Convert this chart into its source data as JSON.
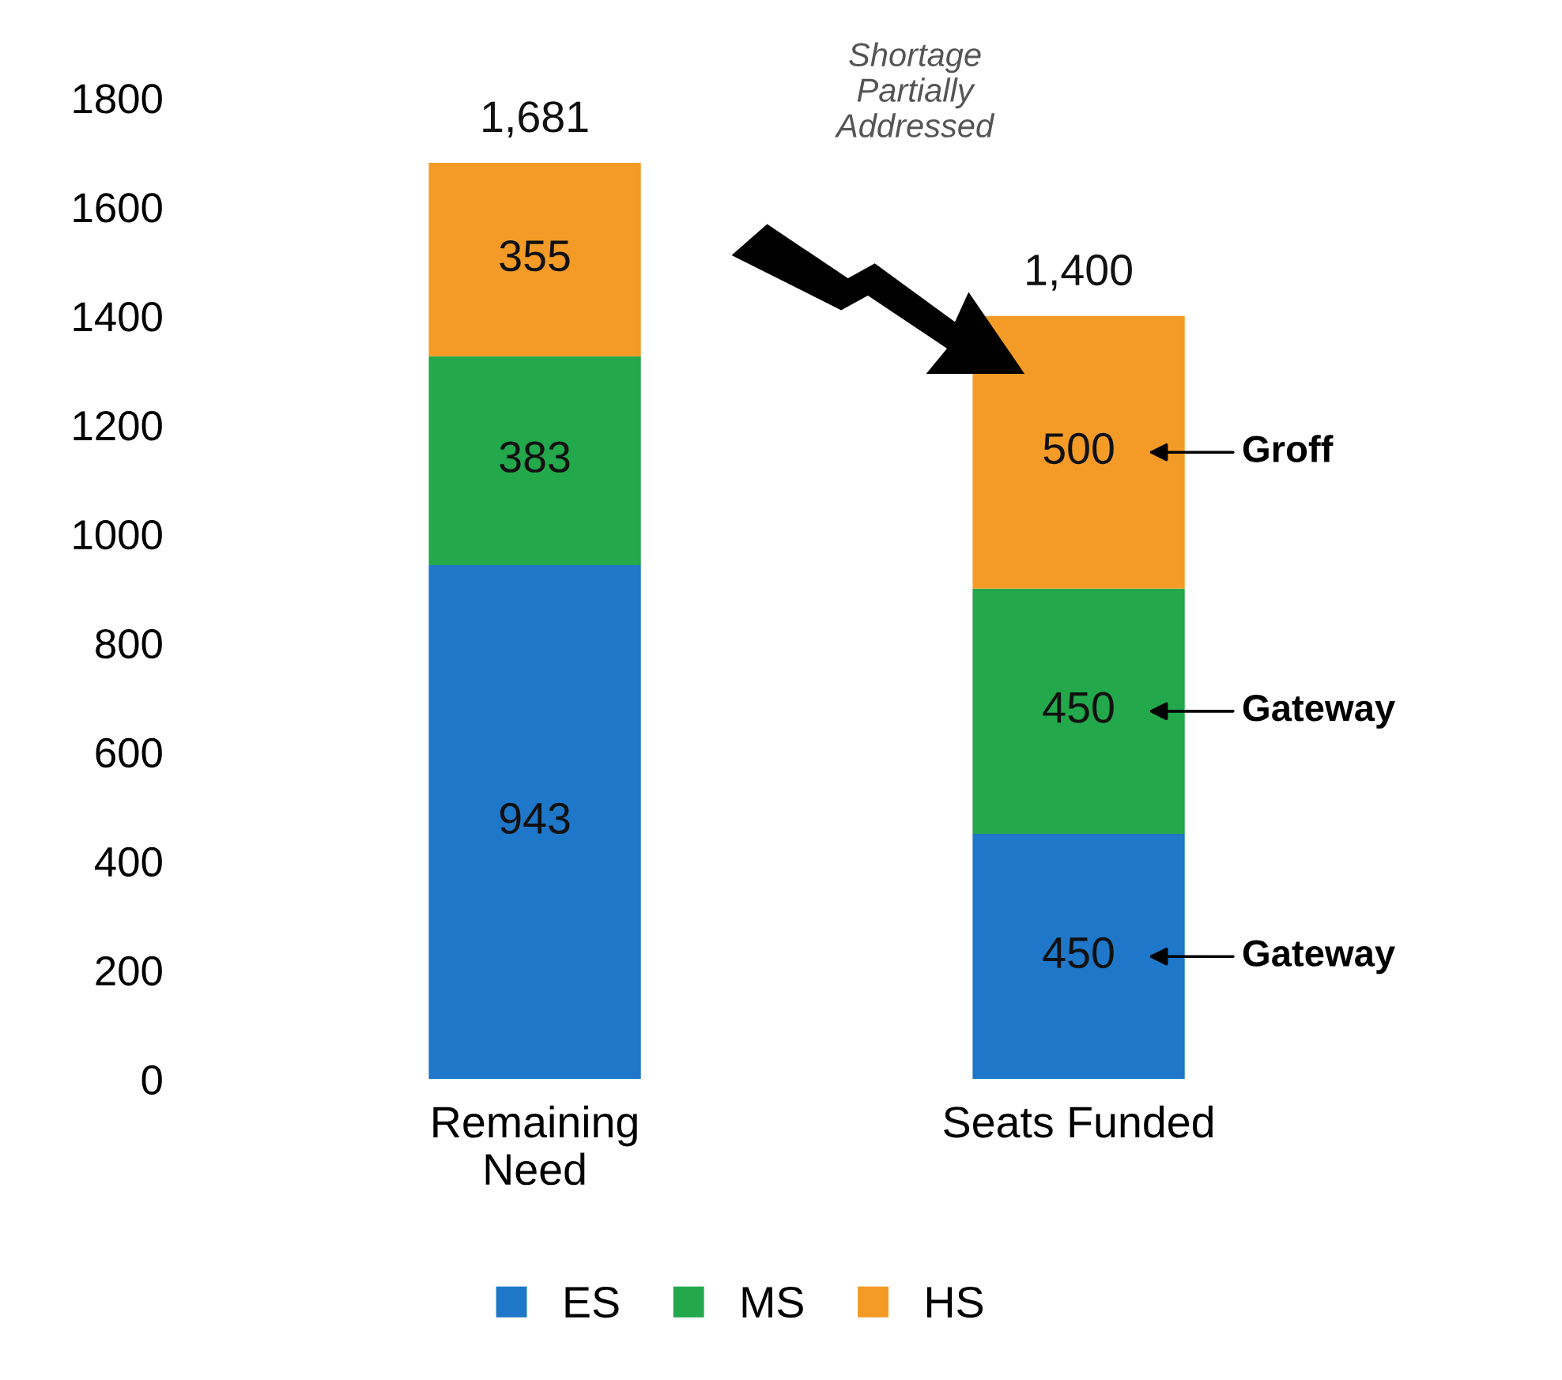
{
  "chart_data": {
    "type": "bar",
    "stacked": true,
    "categories": [
      "Remaining\nNeed",
      "Seats Funded"
    ],
    "series": [
      {
        "name": "ES",
        "color": "#1f77c9",
        "values": [
          943,
          450
        ]
      },
      {
        "name": "MS",
        "color": "#23a84b",
        "values": [
          383,
          450
        ]
      },
      {
        "name": "HS",
        "color": "#f39b26",
        "values": [
          355,
          500
        ]
      }
    ],
    "data_labels": true,
    "totals": [
      "1,681",
      "1,400"
    ],
    "ylim": [
      0,
      1800
    ],
    "yticks": [
      0,
      200,
      400,
      600,
      800,
      1000,
      1200,
      1400,
      1600,
      1800
    ],
    "grid": false,
    "legend": "bottom",
    "annotations": [
      "Shortage\nPartially\nAddressed",
      "Groff",
      "Gateway",
      "Gateway"
    ]
  }
}
